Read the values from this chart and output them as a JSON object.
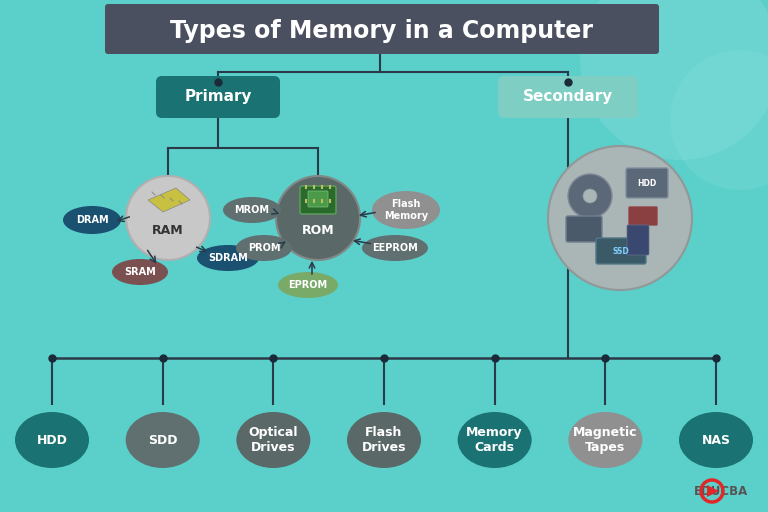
{
  "title": "Types of Memory in a Computer",
  "title_bg": "#4a5060",
  "title_color": "#ffffff",
  "bg_color": "#5bcfca",
  "primary_label": "Primary",
  "primary_color": "#1a7272",
  "primary_text": "#ffffff",
  "secondary_label": "Secondary",
  "secondary_color": "#7ecec4",
  "secondary_text": "#ffffff",
  "ram_color": "#c8c8c8",
  "ram_text": "#333333",
  "rom_color": "#5a6868",
  "rom_text": "#ffffff",
  "dram_color": "#1a5070",
  "dram_text": "#ffffff",
  "sram_color": "#7a5050",
  "sram_text": "#ffffff",
  "sdram_color": "#1a5070",
  "sdram_text": "#ffffff",
  "mrom_color": "#607070",
  "mrom_text": "#ffffff",
  "prom_color": "#607070",
  "prom_text": "#ffffff",
  "eprom_color": "#7aaa68",
  "eprom_text": "#ffffff",
  "eeprom_color": "#607070",
  "eeprom_text": "#ffffff",
  "flash_color": "#909090",
  "flash_text": "#ffffff",
  "secondary_circle_color": "#aab5b5",
  "secondary_circle_edge": "#909898",
  "bottom_nodes": [
    "HDD",
    "SDD",
    "Optical\nDrives",
    "Flash\nDrives",
    "Memory\nCards",
    "Magnetic\nTapes",
    "NAS"
  ],
  "bottom_colors": [
    "#1a7272",
    "#607070",
    "#5a6868",
    "#5a6868",
    "#1a7272",
    "#909090",
    "#1a7272"
  ],
  "bottom_text_color": "#ffffff",
  "line_color": "#2a3a48",
  "dot_color": "#1a2a38",
  "educba_color": "#e02828",
  "educba_text": "#555555"
}
